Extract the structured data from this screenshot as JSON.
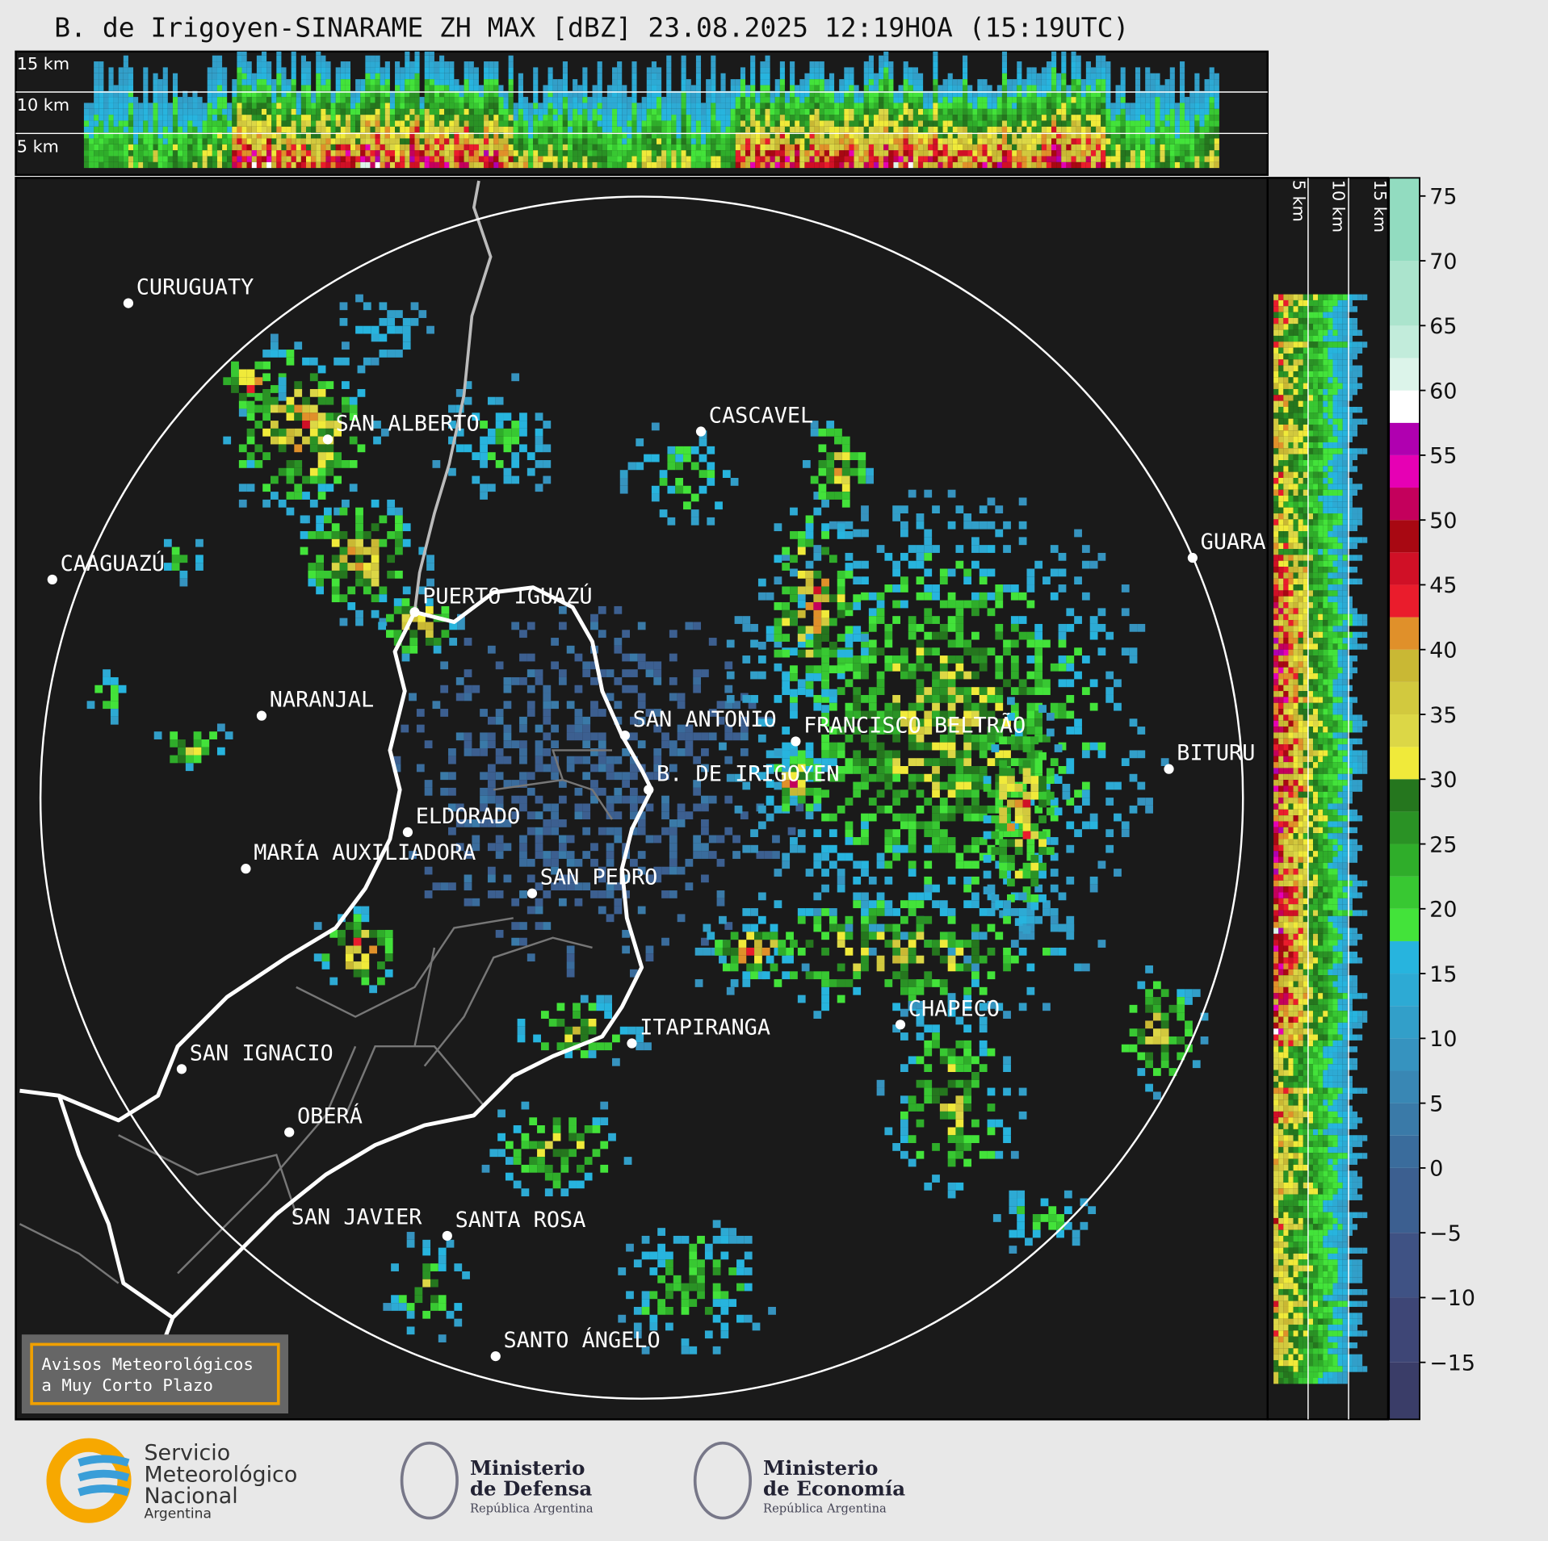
{
  "title": "B. de Irigoyen-SINARAME ZH MAX [dBZ] 23.08.2025 12:19HOA (15:19UTC)",
  "height_labels": {
    "top": [
      "15 km",
      "10 km",
      "5 km"
    ],
    "side": [
      "5 km",
      "10 km",
      "15 km"
    ]
  },
  "places": [
    "CURUGUATY",
    "SAN ALBERTO",
    "CASCAVEL",
    "CAAGUAZÚ",
    "GUARA",
    "PUERTO IGUAZÚ",
    "NARANJAL",
    "SAN ANTONIO",
    "FRANCISCO BELTRÃO",
    "BITURU",
    "B. DE IRIGOYEN",
    "ELDORADO",
    "MARÍA AUXILIADORA",
    "SAN PEDRO",
    "ITAPIRANGA",
    "CHAPECO",
    "SAN IGNACIO",
    "OBERÁ",
    "SAN JAVIER",
    "SANTA ROSA",
    "SANTO ÁNGELO"
  ],
  "colorbar": {
    "lim": [
      -19.4,
      76.4
    ],
    "ticks": [
      75,
      70,
      65,
      60,
      55,
      50,
      45,
      40,
      35,
      30,
      25,
      20,
      15,
      10,
      5,
      0,
      {
        "value": -5,
        "label": "−5"
      },
      {
        "value": -10,
        "label": "−10"
      },
      {
        "value": -15,
        "label": "−15"
      }
    ],
    "bins": [
      {
        "from": -20,
        "color": "#3a3d68"
      },
      {
        "from": -15,
        "color": "#3e4676"
      },
      {
        "from": -10,
        "color": "#3f5284"
      },
      {
        "from": -5,
        "color": "#3c5f90"
      },
      {
        "from": 0,
        "color": "#3a6c9c"
      },
      {
        "from": 2.5,
        "color": "#3a7aa8"
      },
      {
        "from": 5,
        "color": "#3987b4"
      },
      {
        "from": 7.5,
        "color": "#3693bf"
      },
      {
        "from": 10,
        "color": "#329fc9"
      },
      {
        "from": 12.5,
        "color": "#2daad4"
      },
      {
        "from": 15,
        "color": "#27b4de"
      },
      {
        "from": 17.5,
        "color": "#43e33a"
      },
      {
        "from": 20,
        "color": "#38c832"
      },
      {
        "from": 22.5,
        "color": "#2fad2a"
      },
      {
        "from": 25,
        "color": "#2a9225"
      },
      {
        "from": 27.5,
        "color": "#25761e"
      },
      {
        "from": 30,
        "color": "#f0ea3a"
      },
      {
        "from": 32.5,
        "color": "#dcd746"
      },
      {
        "from": 35,
        "color": "#d2c93e"
      },
      {
        "from": 37.5,
        "color": "#c9b834"
      },
      {
        "from": 40,
        "color": "#e0902a"
      },
      {
        "from": 42.5,
        "color": "#ea1c2c"
      },
      {
        "from": 45,
        "color": "#d01026"
      },
      {
        "from": 47.5,
        "color": "#a80812"
      },
      {
        "from": 50,
        "color": "#c4005c"
      },
      {
        "from": 52.5,
        "color": "#e600b4"
      },
      {
        "from": 55,
        "color": "#b000b0"
      },
      {
        "from": 57.5,
        "color": "#ffffff"
      },
      {
        "from": 60,
        "color": "#dcf4ea"
      },
      {
        "from": 62.5,
        "color": "#c2ecdb"
      },
      {
        "from": 65,
        "color": "#abe4cd"
      },
      {
        "from": 70,
        "color": "#92dcc0"
      }
    ]
  },
  "notice": [
    "Avisos Meteorológicos",
    "a Muy Corto Plazo"
  ],
  "logos": {
    "smn": [
      "Servicio",
      "Meteorológico",
      "Nacional",
      "Argentina"
    ],
    "defensa": [
      "Ministerio",
      "de Defensa",
      "República Argentina"
    ],
    "economia": [
      "Ministerio",
      "de Economía",
      "República Argentina"
    ]
  }
}
